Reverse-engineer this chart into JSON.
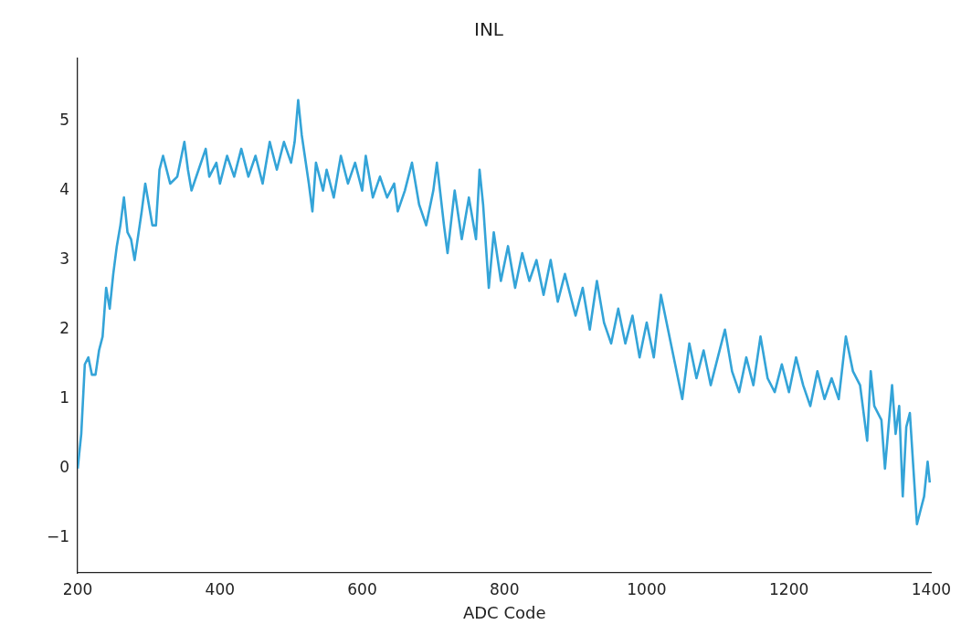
{
  "chart_data": {
    "type": "line",
    "title": "INL",
    "xlabel": "ADC Code",
    "x": [
      200,
      205,
      210,
      215,
      220,
      225,
      230,
      235,
      240,
      245,
      250,
      255,
      260,
      265,
      270,
      275,
      280,
      290,
      295,
      300,
      305,
      310,
      315,
      320,
      330,
      340,
      350,
      355,
      360,
      370,
      380,
      385,
      395,
      400,
      410,
      420,
      430,
      440,
      450,
      460,
      470,
      480,
      490,
      500,
      505,
      510,
      515,
      525,
      530,
      535,
      545,
      550,
      560,
      570,
      580,
      590,
      600,
      605,
      615,
      625,
      635,
      645,
      650,
      660,
      670,
      680,
      690,
      700,
      705,
      715,
      720,
      730,
      740,
      750,
      760,
      765,
      770,
      778,
      785,
      795,
      805,
      815,
      825,
      835,
      845,
      855,
      865,
      875,
      885,
      900,
      910,
      920,
      930,
      940,
      950,
      960,
      970,
      980,
      990,
      1000,
      1010,
      1020,
      1030,
      1040,
      1050,
      1060,
      1070,
      1080,
      1090,
      1100,
      1110,
      1120,
      1130,
      1140,
      1150,
      1160,
      1170,
      1180,
      1190,
      1200,
      1210,
      1220,
      1230,
      1240,
      1250,
      1260,
      1270,
      1280,
      1290,
      1300,
      1310,
      1315,
      1320,
      1330,
      1335,
      1345,
      1350,
      1355,
      1360,
      1365,
      1370,
      1380,
      1385,
      1390,
      1395,
      1398
    ],
    "series": [
      {
        "color": "#34a4d8",
        "values": [
          0,
          0.5,
          1.5,
          1.6,
          1.35,
          1.35,
          1.7,
          1.9,
          2.6,
          2.3,
          2.8,
          3.2,
          3.5,
          3.9,
          3.4,
          3.3,
          3.0,
          3.7,
          4.1,
          3.8,
          3.5,
          3.5,
          4.3,
          4.5,
          4.1,
          4.2,
          4.7,
          4.3,
          4.0,
          4.3,
          4.6,
          4.2,
          4.4,
          4.1,
          4.5,
          4.2,
          4.6,
          4.2,
          4.5,
          4.1,
          4.7,
          4.3,
          4.7,
          4.4,
          4.7,
          5.3,
          4.8,
          4.1,
          3.7,
          4.4,
          4.0,
          4.3,
          3.9,
          4.5,
          4.1,
          4.4,
          4.0,
          4.5,
          3.9,
          4.2,
          3.9,
          4.1,
          3.7,
          4.0,
          4.4,
          3.8,
          3.5,
          4.0,
          4.4,
          3.5,
          3.1,
          4.0,
          3.3,
          3.9,
          3.3,
          4.3,
          3.8,
          2.6,
          3.4,
          2.7,
          3.2,
          2.6,
          3.1,
          2.7,
          3.0,
          2.5,
          3.0,
          2.4,
          2.8,
          2.2,
          2.6,
          2.0,
          2.7,
          2.1,
          1.8,
          2.3,
          1.8,
          2.2,
          1.6,
          2.1,
          1.6,
          2.5,
          2.0,
          1.5,
          1.0,
          1.8,
          1.3,
          1.7,
          1.2,
          1.6,
          2.0,
          1.4,
          1.1,
          1.6,
          1.2,
          1.9,
          1.3,
          1.1,
          1.5,
          1.1,
          1.6,
          1.2,
          0.9,
          1.4,
          1.0,
          1.3,
          1.0,
          1.9,
          1.4,
          1.2,
          0.4,
          1.4,
          0.9,
          0.7,
          0.0,
          1.2,
          0.5,
          0.9,
          -0.4,
          0.6,
          0.8,
          -0.8,
          -0.6,
          -0.4,
          0.1,
          -0.2
        ]
      }
    ],
    "xlim": [
      200,
      1400
    ],
    "xticks": [
      200,
      400,
      600,
      800,
      1000,
      1200,
      1400
    ],
    "ylim": [
      -1.5,
      5.9
    ],
    "yticks": [
      -1,
      0,
      1,
      2,
      3,
      4,
      5
    ],
    "grid": false,
    "legend": false,
    "marker": "none",
    "line_style": "solid"
  }
}
